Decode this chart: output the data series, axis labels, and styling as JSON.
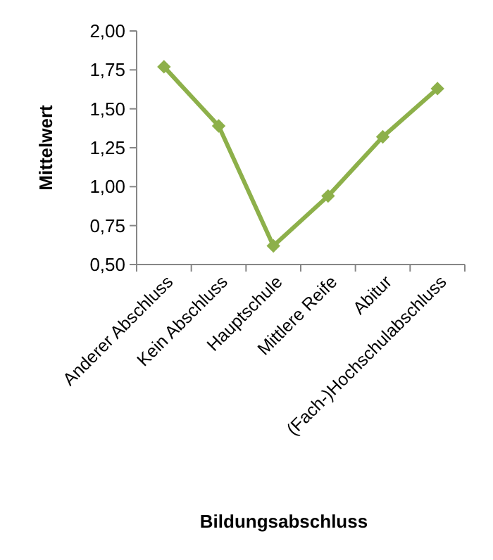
{
  "chart_data": {
    "type": "line",
    "xlabel": "Bildungsabschluss",
    "ylabel": "Mittelwert",
    "categories": [
      "Anderer Abschluss",
      "Kein Abschluss",
      "Hauptschule",
      "Mittlere Reife",
      "Abitur",
      "(Fach-)Hochschulabschluss"
    ],
    "series": [
      {
        "color": "#8db04a",
        "values": [
          1.77,
          1.39,
          0.62,
          0.94,
          1.32,
          1.63
        ]
      }
    ],
    "ylim": [
      0.5,
      2
    ],
    "yticks": [
      {
        "value": 0.5,
        "label": "0,50"
      },
      {
        "value": 0.75,
        "label": "0,75"
      },
      {
        "value": 1,
        "label": "1,00"
      },
      {
        "value": 1.25,
        "label": "1,25"
      },
      {
        "value": 1.5,
        "label": "1,50"
      },
      {
        "value": 1.75,
        "label": "1,75"
      },
      {
        "value": 2,
        "label": "2,00"
      }
    ],
    "grid": false,
    "marker": "diamond"
  }
}
